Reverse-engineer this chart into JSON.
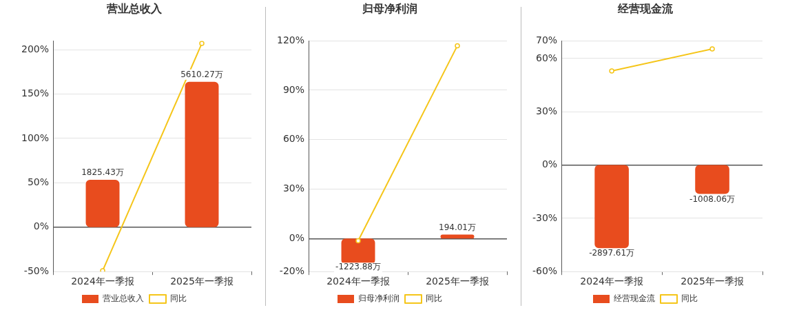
{
  "chart_data": [
    {
      "type": "bar",
      "title": "营业总收入",
      "categories": [
        "2024年一季报",
        "2025年一季报"
      ],
      "series": [
        {
          "name": "营业总收入",
          "axis": "y2",
          "color": "#e84c1e",
          "values": [
            1825.43,
            5610.27
          ],
          "value_labels": [
            "1825.43万",
            "5610.27万"
          ]
        },
        {
          "name": "同比",
          "type": "line",
          "color": "#f5c518",
          "values": [
            -49,
            207
          ]
        }
      ],
      "ylim": [
        -50,
        210
      ],
      "yticks": [
        {
          "value": -50,
          "label": "-50%"
        },
        {
          "value": 0,
          "label": "0%"
        },
        {
          "value": 50,
          "label": "50%"
        },
        {
          "value": 100,
          "label": "100%"
        },
        {
          "value": 150,
          "label": "150%"
        },
        {
          "value": 200,
          "label": "200%"
        }
      ],
      "grid": "y",
      "legend": "bottom",
      "marker": "circle"
    },
    {
      "type": "bar",
      "title": "归母净利润",
      "categories": [
        "2024年一季报",
        "2025年一季报"
      ],
      "series": [
        {
          "name": "归母净利润",
          "axis": "y2",
          "color": "#e84c1e",
          "values": [
            -1223.88,
            194.01
          ],
          "value_labels": [
            "-1223.88万",
            "194.01万"
          ]
        },
        {
          "name": "同比",
          "type": "line",
          "color": "#f5c518",
          "values": [
            -1.3,
            117
          ]
        }
      ],
      "ylim": [
        -20,
        120
      ],
      "yticks": [
        {
          "value": -20,
          "label": "-20%"
        },
        {
          "value": 0,
          "label": "0%"
        },
        {
          "value": 30,
          "label": "30%"
        },
        {
          "value": 60,
          "label": "60%"
        },
        {
          "value": 90,
          "label": "90%"
        },
        {
          "value": 120,
          "label": "120%"
        }
      ],
      "grid": "y",
      "legend": "bottom",
      "marker": "circle"
    },
    {
      "type": "bar",
      "title": "经营现金流",
      "categories": [
        "2024年一季报",
        "2025年一季报"
      ],
      "series": [
        {
          "name": "经营现金流",
          "axis": "y2",
          "color": "#e84c1e",
          "values": [
            -2897.61,
            -1008.06
          ],
          "value_labels": [
            "-2897.61万",
            "-1008.06万"
          ]
        },
        {
          "name": "同比",
          "type": "line",
          "color": "#f5c518",
          "values": [
            53,
            65.4
          ]
        }
      ],
      "ylim": [
        -60,
        70
      ],
      "yticks": [
        {
          "value": -60,
          "label": "-60%"
        },
        {
          "value": -30,
          "label": "-30%"
        },
        {
          "value": 0,
          "label": "0%"
        },
        {
          "value": 30,
          "label": "30%"
        },
        {
          "value": 60,
          "label": "60%"
        },
        {
          "value": 70,
          "label": "70%"
        }
      ],
      "grid": "y",
      "legend": "bottom",
      "marker": "circle"
    }
  ]
}
